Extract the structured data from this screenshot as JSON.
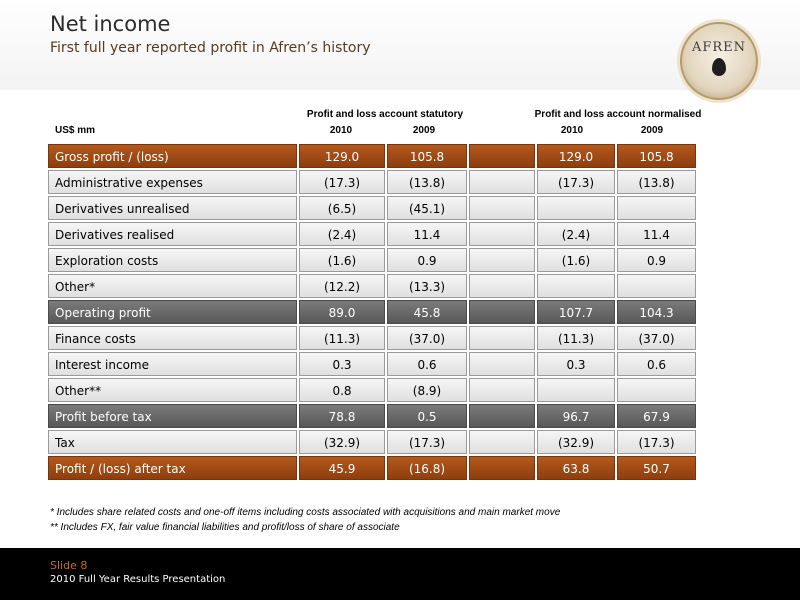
{
  "header": {
    "title": "Net income",
    "subtitle": "First full year reported profit in Afren’s history",
    "logo_text": "AFREN"
  },
  "table": {
    "units": "US$ mm",
    "groups": [
      {
        "label": "Profit and loss account statutory",
        "years": [
          "2010",
          "2009"
        ]
      },
      {
        "label": "Profit and loss account normalised",
        "years": [
          "2010",
          "2009"
        ]
      }
    ],
    "rows": [
      {
        "label": "Gross profit / (loss)",
        "stat_2010": "129.0",
        "stat_2009": "105.8",
        "norm_2010": "129.0",
        "norm_2009": "105.8",
        "style": "brown"
      },
      {
        "label": "Administrative expenses",
        "stat_2010": "(17.3)",
        "stat_2009": "(13.8)",
        "norm_2010": "(17.3)",
        "norm_2009": "(13.8)",
        "style": "plain"
      },
      {
        "label": "Derivatives unrealised",
        "stat_2010": "(6.5)",
        "stat_2009": "(45.1)",
        "norm_2010": "",
        "norm_2009": "",
        "style": "plain"
      },
      {
        "label": "Derivatives realised",
        "stat_2010": "(2.4)",
        "stat_2009": "11.4",
        "norm_2010": "(2.4)",
        "norm_2009": "11.4",
        "style": "plain"
      },
      {
        "label": "Exploration costs",
        "stat_2010": "(1.6)",
        "stat_2009": "0.9",
        "norm_2010": "(1.6)",
        "norm_2009": "0.9",
        "style": "plain"
      },
      {
        "label": "Other*",
        "stat_2010": "(12.2)",
        "stat_2009": "(13.3)",
        "norm_2010": "",
        "norm_2009": "",
        "style": "plain"
      },
      {
        "label": "Operating profit",
        "stat_2010": "89.0",
        "stat_2009": "45.8",
        "norm_2010": "107.7",
        "norm_2009": "104.3",
        "style": "dark"
      },
      {
        "label": "Finance costs",
        "stat_2010": "(11.3)",
        "stat_2009": "(37.0)",
        "norm_2010": "(11.3)",
        "norm_2009": "(37.0)",
        "style": "plain"
      },
      {
        "label": "Interest income",
        "stat_2010": "0.3",
        "stat_2009": "0.6",
        "norm_2010": "0.3",
        "norm_2009": "0.6",
        "style": "plain"
      },
      {
        "label": "Other**",
        "stat_2010": "0.8",
        "stat_2009": "(8.9)",
        "norm_2010": "",
        "norm_2009": "",
        "style": "plain"
      },
      {
        "label": "Profit before tax",
        "stat_2010": "78.8",
        "stat_2009": "0.5",
        "norm_2010": "96.7",
        "norm_2009": "67.9",
        "style": "dark"
      },
      {
        "label": "Tax",
        "stat_2010": "(32.9)",
        "stat_2009": "(17.3)",
        "norm_2010": "(32.9)",
        "norm_2009": "(17.3)",
        "style": "plain"
      },
      {
        "label": "Profit / (loss) after tax",
        "stat_2010": "45.9",
        "stat_2009": "(16.8)",
        "norm_2010": "63.8",
        "norm_2009": "50.7",
        "style": "brown"
      }
    ]
  },
  "footnotes": [
    "*  Includes share related costs and one-off items including costs associated with acquisitions and main market move",
    "** Includes FX, fair value financial liabilities and profit/loss of share of  associate"
  ],
  "footer": {
    "slide": "Slide 8",
    "presentation": "2010 Full Year Results Presentation"
  },
  "colors": {
    "brown_row": "#9e4a14",
    "dark_row": "#666666",
    "accent": "#c06a2c"
  }
}
